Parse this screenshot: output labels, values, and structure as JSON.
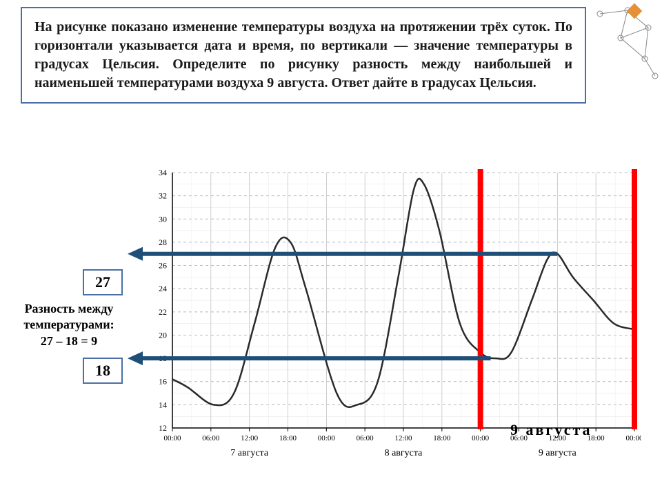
{
  "question": "На рисунке показано изменение температуры воздуха на протяжении трёх суток. По горизонтали указывается дата и время, по вертикали — значение температуры в градусах Цельсия. Определите по рисунку разность между наибольшей и наименьшей температурами воздуха 9 августа. Ответ дайте в градусах Цельсия.",
  "max_value": "27",
  "min_value": "18",
  "diff_text_1": "Разность между",
  "diff_text_2": "температурами:",
  "diff_calc": "27 – 18 = 9",
  "day_label": "9   августа",
  "chart": {
    "type": "line",
    "y_label_values": [
      12,
      14,
      16,
      18,
      20,
      22,
      24,
      26,
      28,
      30,
      32,
      34
    ],
    "ylim": [
      12,
      34
    ],
    "x_time_labels": [
      "00:00",
      "06:00",
      "12:00",
      "18:00",
      "00:00",
      "06:00",
      "12:00",
      "18:00",
      "00:00",
      "06:00",
      "12:00",
      "18:00",
      "00:00"
    ],
    "x_day_labels": [
      "7 августа",
      "8 августа",
      "9 августа"
    ],
    "background_color": "#ffffff",
    "grid_color": "#b8b8b8",
    "grid_dash": "4,4",
    "axis_color": "#000000",
    "curve_color": "#2a2a2a",
    "curve_width": 2.5,
    "highlight_color": "#ff0000",
    "highlight_width": 8,
    "arrow_color": "#1f4e79",
    "arrow_width": 6,
    "label_fontsize": 12,
    "curve_points": [
      [
        0,
        16.2
      ],
      [
        3,
        15.5
      ],
      [
        8,
        14.0
      ],
      [
        12,
        15.0
      ],
      [
        16,
        21.0
      ],
      [
        20,
        27.5
      ],
      [
        23,
        28.0
      ],
      [
        26,
        24.0
      ],
      [
        32,
        15.0
      ],
      [
        36,
        14.0
      ],
      [
        40,
        16.0
      ],
      [
        44,
        25.0
      ],
      [
        47,
        32.5
      ],
      [
        49,
        33.0
      ],
      [
        52,
        29.0
      ],
      [
        56,
        21.0
      ],
      [
        60,
        18.5
      ],
      [
        63,
        18.0
      ],
      [
        66,
        18.5
      ],
      [
        70,
        23.0
      ],
      [
        73,
        26.5
      ],
      [
        75,
        27.0
      ],
      [
        78,
        25.0
      ],
      [
        82,
        23.0
      ],
      [
        86,
        21.0
      ],
      [
        90,
        20.5
      ]
    ],
    "highlight_x": [
      60,
      90
    ],
    "arrow_max_y": 27,
    "arrow_min_y": 18,
    "arrow_max_from_x": 75,
    "arrow_min_from_x": 62
  },
  "deco": {
    "accent": "#e69138",
    "line": "#888888"
  }
}
